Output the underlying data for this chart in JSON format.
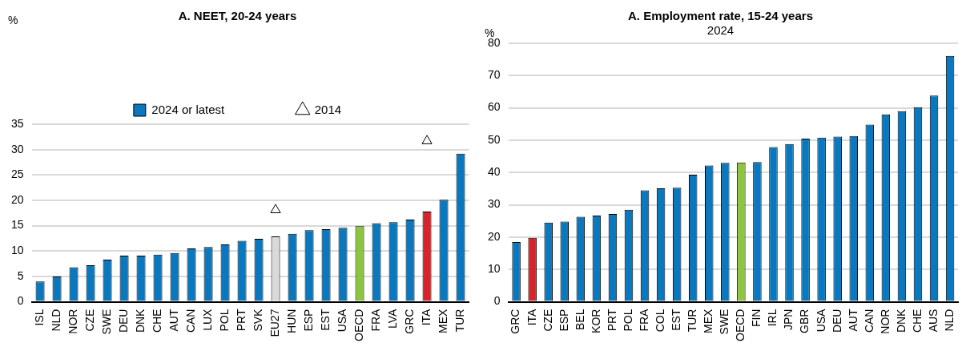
{
  "chart_data": [
    {
      "type": "bar",
      "title": "A. NEET, 20-24 years",
      "ylabel": "%",
      "categories": [
        "ISL",
        "NLD",
        "NOR",
        "CZE",
        "SWE",
        "DEU",
        "DNK",
        "CHE",
        "AUT",
        "CAN",
        "LUX",
        "POL",
        "PRT",
        "SVK",
        "EU27",
        "HUN",
        "ESP",
        "EST",
        "USA",
        "OECD",
        "FRA",
        "LVA",
        "GRC",
        "ITA",
        "MEX",
        "TUR"
      ],
      "series": [
        {
          "name": "2024 or latest",
          "color": "#0a78be",
          "colors": [
            "#0a78be",
            "#0a78be",
            "#0a78be",
            "#0a78be",
            "#0a78be",
            "#0a78be",
            "#0a78be",
            "#0a78be",
            "#0a78be",
            "#0a78be",
            "#0a78be",
            "#0a78be",
            "#0a78be",
            "#0a78be",
            "#d9d9d9",
            "#0a78be",
            "#0a78be",
            "#0a78be",
            "#0a78be",
            "#8cc63f",
            "#0a78be",
            "#0a78be",
            "#0a78be",
            "#d9232a",
            "#0a78be",
            "#0a78be"
          ],
          "values": [
            4.0,
            5.0,
            6.8,
            7.2,
            8.3,
            9.1,
            9.1,
            9.3,
            9.6,
            10.5,
            10.8,
            11.3,
            12.0,
            12.4,
            12.9,
            13.4,
            14.1,
            14.3,
            14.6,
            14.9,
            15.5,
            15.7,
            16.2,
            17.8,
            20.1,
            29.2
          ]
        },
        {
          "name": "2014",
          "type": "scatter",
          "marker": "triangle",
          "color": "#000000",
          "x": [
            "EU27",
            "ITA"
          ],
          "values": [
            18.1,
            31.7
          ]
        }
      ],
      "ylim": [
        0,
        35
      ],
      "yticks": [
        0,
        5,
        10,
        15,
        20,
        25,
        30,
        35
      ],
      "grid": "y",
      "legend": "top"
    },
    {
      "type": "bar",
      "title": "A. Employment rate, 15-24 years",
      "subtitle": "2024",
      "ylabel": "%",
      "categories": [
        "GRC",
        "ITA",
        "CZE",
        "ESP",
        "BEL",
        "KOR",
        "PRT",
        "POL",
        "FRA",
        "COL",
        "EST",
        "TUR",
        "MEX",
        "SWE",
        "OECD",
        "FIN",
        "IRL",
        "JPN",
        "GBR",
        "USA",
        "DEU",
        "AUT",
        "CAN",
        "NOR",
        "DNK",
        "CHE",
        "AUS",
        "NLD"
      ],
      "series": [
        {
          "color": "#0a78be",
          "colors": [
            "#0a78be",
            "#d9232a",
            "#0a78be",
            "#0a78be",
            "#0a78be",
            "#0a78be",
            "#0a78be",
            "#0a78be",
            "#0a78be",
            "#0a78be",
            "#0a78be",
            "#0a78be",
            "#0a78be",
            "#0a78be",
            "#8cc63f",
            "#0a78be",
            "#0a78be",
            "#0a78be",
            "#0a78be",
            "#0a78be",
            "#0a78be",
            "#0a78be",
            "#0a78be",
            "#0a78be",
            "#0a78be",
            "#0a78be",
            "#0a78be",
            "#0a78be"
          ],
          "values": [
            18.5,
            19.8,
            24.5,
            24.8,
            26.3,
            26.7,
            27.2,
            28.5,
            34.5,
            35.1,
            35.3,
            39.3,
            42.2,
            43.0,
            43.1,
            43.2,
            47.9,
            48.8,
            50.5,
            50.8,
            51.1,
            51.3,
            54.8,
            58.0,
            59.0,
            60.2,
            63.8,
            76.1
          ]
        }
      ],
      "ylim": [
        0,
        80
      ],
      "yticks": [
        0,
        10,
        20,
        30,
        40,
        50,
        60,
        70,
        80
      ],
      "grid": "y"
    }
  ]
}
